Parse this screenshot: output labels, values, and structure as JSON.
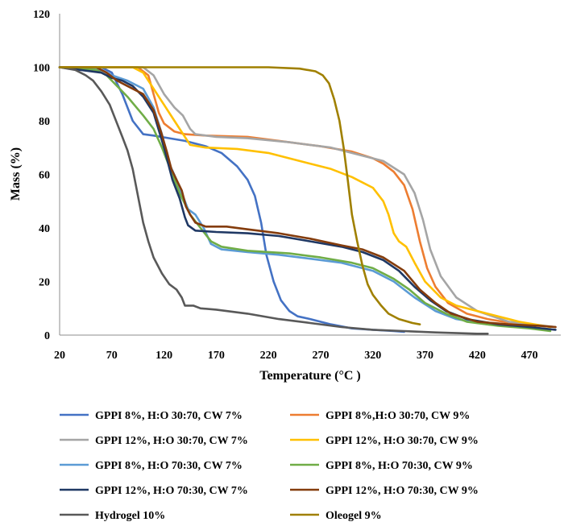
{
  "chart_data": {
    "type": "line",
    "title": "",
    "xlabel": "Temperature (°C )",
    "ylabel": "Mass (%)",
    "xlim": [
      20,
      500
    ],
    "ylim": [
      0,
      120
    ],
    "xticks": [
      20,
      70,
      120,
      170,
      220,
      270,
      320,
      370,
      420,
      470
    ],
    "yticks": [
      0,
      20,
      40,
      60,
      80,
      100,
      120
    ],
    "grid": false,
    "legend": "bottom",
    "series": [
      {
        "name": "GPPI 8%, H:O 30:70, CW 7%",
        "color": "#4472c4",
        "points": [
          [
            20,
            100
          ],
          [
            60,
            100
          ],
          [
            70,
            98
          ],
          [
            80,
            90
          ],
          [
            90,
            80
          ],
          [
            100,
            75
          ],
          [
            110,
            74.5
          ],
          [
            125,
            73.5
          ],
          [
            140,
            72.5
          ],
          [
            160,
            70.5
          ],
          [
            175,
            68
          ],
          [
            190,
            63
          ],
          [
            200,
            58
          ],
          [
            207,
            52
          ],
          [
            213,
            42
          ],
          [
            218,
            30
          ],
          [
            225,
            20
          ],
          [
            232,
            13
          ],
          [
            240,
            9
          ],
          [
            248,
            7
          ],
          [
            260,
            6
          ],
          [
            280,
            4
          ],
          [
            300,
            2.5
          ],
          [
            320,
            2
          ],
          [
            340,
            1.5
          ],
          [
            350,
            1.2
          ]
        ]
      },
      {
        "name": "GPPI 8%,H:O 30:70, CW 9%",
        "color": "#ed7d31",
        "points": [
          [
            20,
            100
          ],
          [
            95,
            100
          ],
          [
            105,
            97
          ],
          [
            110,
            90
          ],
          [
            115,
            83
          ],
          [
            120,
            79
          ],
          [
            130,
            76
          ],
          [
            140,
            75
          ],
          [
            160,
            74.5
          ],
          [
            200,
            74
          ],
          [
            240,
            72
          ],
          [
            270,
            70.5
          ],
          [
            300,
            68.5
          ],
          [
            320,
            66
          ],
          [
            330,
            64
          ],
          [
            340,
            61
          ],
          [
            350,
            56
          ],
          [
            358,
            47
          ],
          [
            365,
            35
          ],
          [
            372,
            25
          ],
          [
            380,
            18
          ],
          [
            392,
            12
          ],
          [
            410,
            8
          ],
          [
            430,
            6
          ],
          [
            460,
            4
          ],
          [
            495,
            3
          ]
        ]
      },
      {
        "name": "GPPI 12%, H:O 30:70, CW 7%",
        "color": "#a5a5a5",
        "points": [
          [
            20,
            100
          ],
          [
            100,
            100
          ],
          [
            110,
            97
          ],
          [
            120,
            90
          ],
          [
            130,
            85
          ],
          [
            138,
            82
          ],
          [
            145,
            77
          ],
          [
            150,
            75
          ],
          [
            170,
            74
          ],
          [
            200,
            73.5
          ],
          [
            240,
            72
          ],
          [
            280,
            70
          ],
          [
            310,
            67
          ],
          [
            330,
            65
          ],
          [
            350,
            60
          ],
          [
            360,
            53
          ],
          [
            368,
            43
          ],
          [
            375,
            32
          ],
          [
            385,
            22
          ],
          [
            400,
            14
          ],
          [
            420,
            9
          ],
          [
            450,
            5
          ],
          [
            495,
            3
          ]
        ]
      },
      {
        "name": "GPPI 12%, H:O 30:70, CW 9%",
        "color": "#ffc000",
        "points": [
          [
            20,
            100
          ],
          [
            90,
            100
          ],
          [
            100,
            98
          ],
          [
            110,
            92
          ],
          [
            120,
            86
          ],
          [
            130,
            80
          ],
          [
            140,
            74
          ],
          [
            145,
            71
          ],
          [
            160,
            70
          ],
          [
            190,
            69.5
          ],
          [
            220,
            68
          ],
          [
            250,
            65
          ],
          [
            280,
            62
          ],
          [
            300,
            59
          ],
          [
            320,
            55
          ],
          [
            330,
            50
          ],
          [
            335,
            45
          ],
          [
            340,
            38
          ],
          [
            345,
            35
          ],
          [
            352,
            33
          ],
          [
            360,
            27
          ],
          [
            370,
            20
          ],
          [
            385,
            14
          ],
          [
            400,
            11
          ],
          [
            420,
            9
          ],
          [
            440,
            7
          ],
          [
            460,
            5
          ],
          [
            490,
            3
          ]
        ]
      },
      {
        "name": "GPPI 8%, H:O 70:30, CW 7%",
        "color": "#5b9bd5",
        "points": [
          [
            20,
            100
          ],
          [
            60,
            99
          ],
          [
            70,
            97
          ],
          [
            85,
            95
          ],
          [
            100,
            92
          ],
          [
            110,
            85
          ],
          [
            118,
            75
          ],
          [
            125,
            64
          ],
          [
            132,
            58
          ],
          [
            138,
            52
          ],
          [
            143,
            47
          ],
          [
            150,
            45
          ],
          [
            158,
            40
          ],
          [
            165,
            34
          ],
          [
            175,
            32
          ],
          [
            200,
            31
          ],
          [
            230,
            30
          ],
          [
            260,
            28.5
          ],
          [
            290,
            27
          ],
          [
            320,
            24
          ],
          [
            340,
            20
          ],
          [
            360,
            14
          ],
          [
            380,
            9
          ],
          [
            400,
            6
          ],
          [
            430,
            4
          ],
          [
            460,
            3
          ],
          [
            490,
            2
          ]
        ]
      },
      {
        "name": "GPPI 8%, H:O 70:30, CW 9%",
        "color": "#70ad47",
        "points": [
          [
            20,
            100
          ],
          [
            55,
            99
          ],
          [
            65,
            97
          ],
          [
            75,
            93
          ],
          [
            85,
            89
          ],
          [
            100,
            82
          ],
          [
            110,
            77
          ],
          [
            118,
            70
          ],
          [
            125,
            63
          ],
          [
            135,
            53
          ],
          [
            145,
            45
          ],
          [
            155,
            40
          ],
          [
            165,
            35
          ],
          [
            175,
            33
          ],
          [
            200,
            31.5
          ],
          [
            240,
            30.5
          ],
          [
            270,
            29
          ],
          [
            300,
            27
          ],
          [
            320,
            25
          ],
          [
            340,
            21
          ],
          [
            355,
            17
          ],
          [
            370,
            12
          ],
          [
            390,
            8
          ],
          [
            410,
            5
          ],
          [
            440,
            3.5
          ],
          [
            470,
            2.5
          ],
          [
            490,
            1.5
          ]
        ]
      },
      {
        "name": "GPPI 12%, H:O 70:30, CW 7%",
        "color": "#1f3864",
        "points": [
          [
            20,
            100
          ],
          [
            60,
            98
          ],
          [
            70,
            96
          ],
          [
            80,
            95
          ],
          [
            90,
            93
          ],
          [
            100,
            89
          ],
          [
            110,
            83
          ],
          [
            120,
            70
          ],
          [
            128,
            58
          ],
          [
            135,
            51
          ],
          [
            140,
            44
          ],
          [
            143,
            41
          ],
          [
            150,
            39
          ],
          [
            170,
            38.5
          ],
          [
            200,
            38
          ],
          [
            230,
            37
          ],
          [
            260,
            35
          ],
          [
            290,
            33
          ],
          [
            310,
            31
          ],
          [
            330,
            28
          ],
          [
            345,
            24
          ],
          [
            360,
            18
          ],
          [
            375,
            13
          ],
          [
            390,
            9
          ],
          [
            410,
            6
          ],
          [
            440,
            4
          ],
          [
            470,
            3
          ],
          [
            495,
            2
          ]
        ]
      },
      {
        "name": "GPPI 12%, H:O 70:30, CW 9%",
        "color": "#843c0c",
        "points": [
          [
            20,
            100
          ],
          [
            55,
            100
          ],
          [
            65,
            98
          ],
          [
            75,
            95
          ],
          [
            85,
            93
          ],
          [
            100,
            90
          ],
          [
            110,
            84
          ],
          [
            117,
            76
          ],
          [
            123,
            68
          ],
          [
            127,
            62
          ],
          [
            132,
            58
          ],
          [
            137,
            54
          ],
          [
            141,
            48
          ],
          [
            145,
            45
          ],
          [
            150,
            42
          ],
          [
            160,
            40.5
          ],
          [
            180,
            40.5
          ],
          [
            200,
            39.5
          ],
          [
            230,
            38
          ],
          [
            260,
            36
          ],
          [
            290,
            33.5
          ],
          [
            310,
            32
          ],
          [
            330,
            29
          ],
          [
            350,
            24
          ],
          [
            365,
            17
          ],
          [
            380,
            12
          ],
          [
            395,
            8
          ],
          [
            420,
            5
          ],
          [
            450,
            4
          ],
          [
            480,
            3.5
          ],
          [
            495,
            3
          ]
        ]
      },
      {
        "name": "Hydrogel 10%",
        "color": "#595959",
        "points": [
          [
            20,
            100
          ],
          [
            35,
            99
          ],
          [
            45,
            97
          ],
          [
            52,
            95
          ],
          [
            60,
            91
          ],
          [
            68,
            86
          ],
          [
            75,
            79
          ],
          [
            80,
            74
          ],
          [
            85,
            69
          ],
          [
            90,
            62
          ],
          [
            95,
            52
          ],
          [
            100,
            42
          ],
          [
            105,
            35
          ],
          [
            110,
            29
          ],
          [
            118,
            23
          ],
          [
            125,
            19
          ],
          [
            132,
            17
          ],
          [
            137,
            14
          ],
          [
            140,
            11
          ],
          [
            148,
            11
          ],
          [
            155,
            10
          ],
          [
            170,
            9.5
          ],
          [
            200,
            8
          ],
          [
            230,
            6
          ],
          [
            260,
            4.5
          ],
          [
            290,
            3
          ],
          [
            320,
            2
          ],
          [
            350,
            1.5
          ],
          [
            380,
            1
          ],
          [
            420,
            0.5
          ],
          [
            430,
            0.5
          ]
        ]
      },
      {
        "name": "Oleogel 9%",
        "color": "#a08000",
        "points": [
          [
            20,
            100
          ],
          [
            100,
            100
          ],
          [
            150,
            100
          ],
          [
            200,
            100
          ],
          [
            220,
            100
          ],
          [
            250,
            99.5
          ],
          [
            265,
            98.5
          ],
          [
            272,
            97
          ],
          [
            278,
            94
          ],
          [
            283,
            88
          ],
          [
            288,
            80
          ],
          [
            292,
            70
          ],
          [
            296,
            58
          ],
          [
            300,
            45
          ],
          [
            305,
            35
          ],
          [
            310,
            26
          ],
          [
            315,
            19
          ],
          [
            320,
            15
          ],
          [
            328,
            11
          ],
          [
            335,
            8
          ],
          [
            345,
            6
          ],
          [
            358,
            4.5
          ],
          [
            365,
            4
          ]
        ]
      }
    ]
  }
}
